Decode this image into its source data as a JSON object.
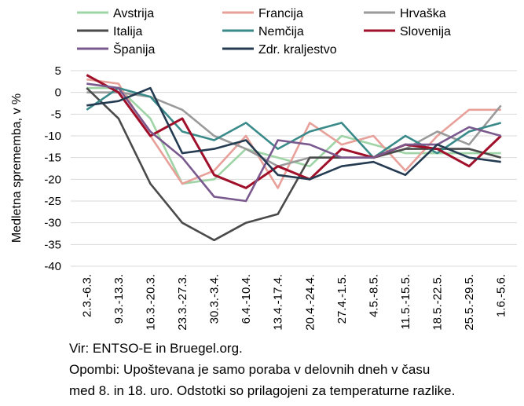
{
  "chart_data": {
    "type": "line",
    "ylabel": "Medletna sprememba, v %",
    "ylim": [
      -40,
      5
    ],
    "yticks": [
      5,
      0,
      -5,
      -10,
      -15,
      -20,
      -25,
      -30,
      -35,
      -40
    ],
    "grid": true,
    "legend_position": "top",
    "categories": [
      "2.3.-6.3.",
      "9.3.-13.3.",
      "16.3.-20.3.",
      "23.3.-27.3.",
      "30.3.-3.4.",
      "6.4.-10.4.",
      "13.4.-17.4.",
      "20.4.-24.4.",
      "27.4.-1.5.",
      "4.5.-8.5.",
      "11.5.-15.5.",
      "18.5.-22.5.",
      "25.5.-29.5.",
      "1.6.-5.6."
    ],
    "series": [
      {
        "name": "Avstrija",
        "color": "#9fd4a6",
        "values": [
          1,
          1,
          -6,
          -21,
          -20,
          -13,
          -15,
          -17,
          -10,
          -12,
          -14,
          -14,
          -14,
          -14
        ]
      },
      {
        "name": "Francija",
        "color": "#e8a09a",
        "values": [
          3,
          2,
          -10,
          -21,
          -18,
          -10,
          -22,
          -7,
          -12,
          -10,
          -18,
          -10,
          -4,
          -4
        ]
      },
      {
        "name": "Hrvaška",
        "color": "#9a9a9a",
        "values": [
          0,
          0,
          -1,
          -4,
          -10,
          -13,
          -17,
          -15,
          -15,
          -15,
          -13,
          -9,
          -12,
          -3
        ]
      },
      {
        "name": "Italija",
        "color": "#4a4a4a",
        "values": [
          1,
          -6,
          -21,
          -30,
          -34,
          -30,
          -28,
          -15,
          -15,
          -15,
          -13,
          -13,
          -13,
          -15
        ]
      },
      {
        "name": "Nemčija",
        "color": "#3a8a8a",
        "values": [
          -4,
          1,
          -1,
          -9,
          -11,
          -7,
          -13,
          -9,
          -7,
          -15,
          -10,
          -14,
          -9,
          -7
        ]
      },
      {
        "name": "Slovenija",
        "color": "#a0102a",
        "values": [
          4,
          0,
          -10,
          -6,
          -19,
          -22,
          -17,
          -20,
          -13,
          -15,
          -12,
          -13,
          -17,
          -10
        ]
      },
      {
        "name": "Španija",
        "color": "#7a5a8e",
        "values": [
          2,
          1,
          -9,
          -15,
          -24,
          -25,
          -11,
          -12,
          -15,
          -15,
          -12,
          -12,
          -8,
          -10
        ]
      },
      {
        "name": "Zdr. kraljestvo",
        "color": "#253b52",
        "values": [
          -3,
          -2,
          1,
          -14,
          -13,
          -11,
          -19,
          -20,
          -17,
          -16,
          -19,
          -12,
          -15,
          -16
        ]
      }
    ]
  },
  "footnotes": {
    "source": "Vir: ENTSO-E in Bruegel.org.",
    "note_line1": "Opombi: Upoštevana je samo poraba v delovnih dneh v času",
    "note_line2": "med 8. in 18. uro. Odstotki so prilagojeni za temperaturne razlike."
  }
}
